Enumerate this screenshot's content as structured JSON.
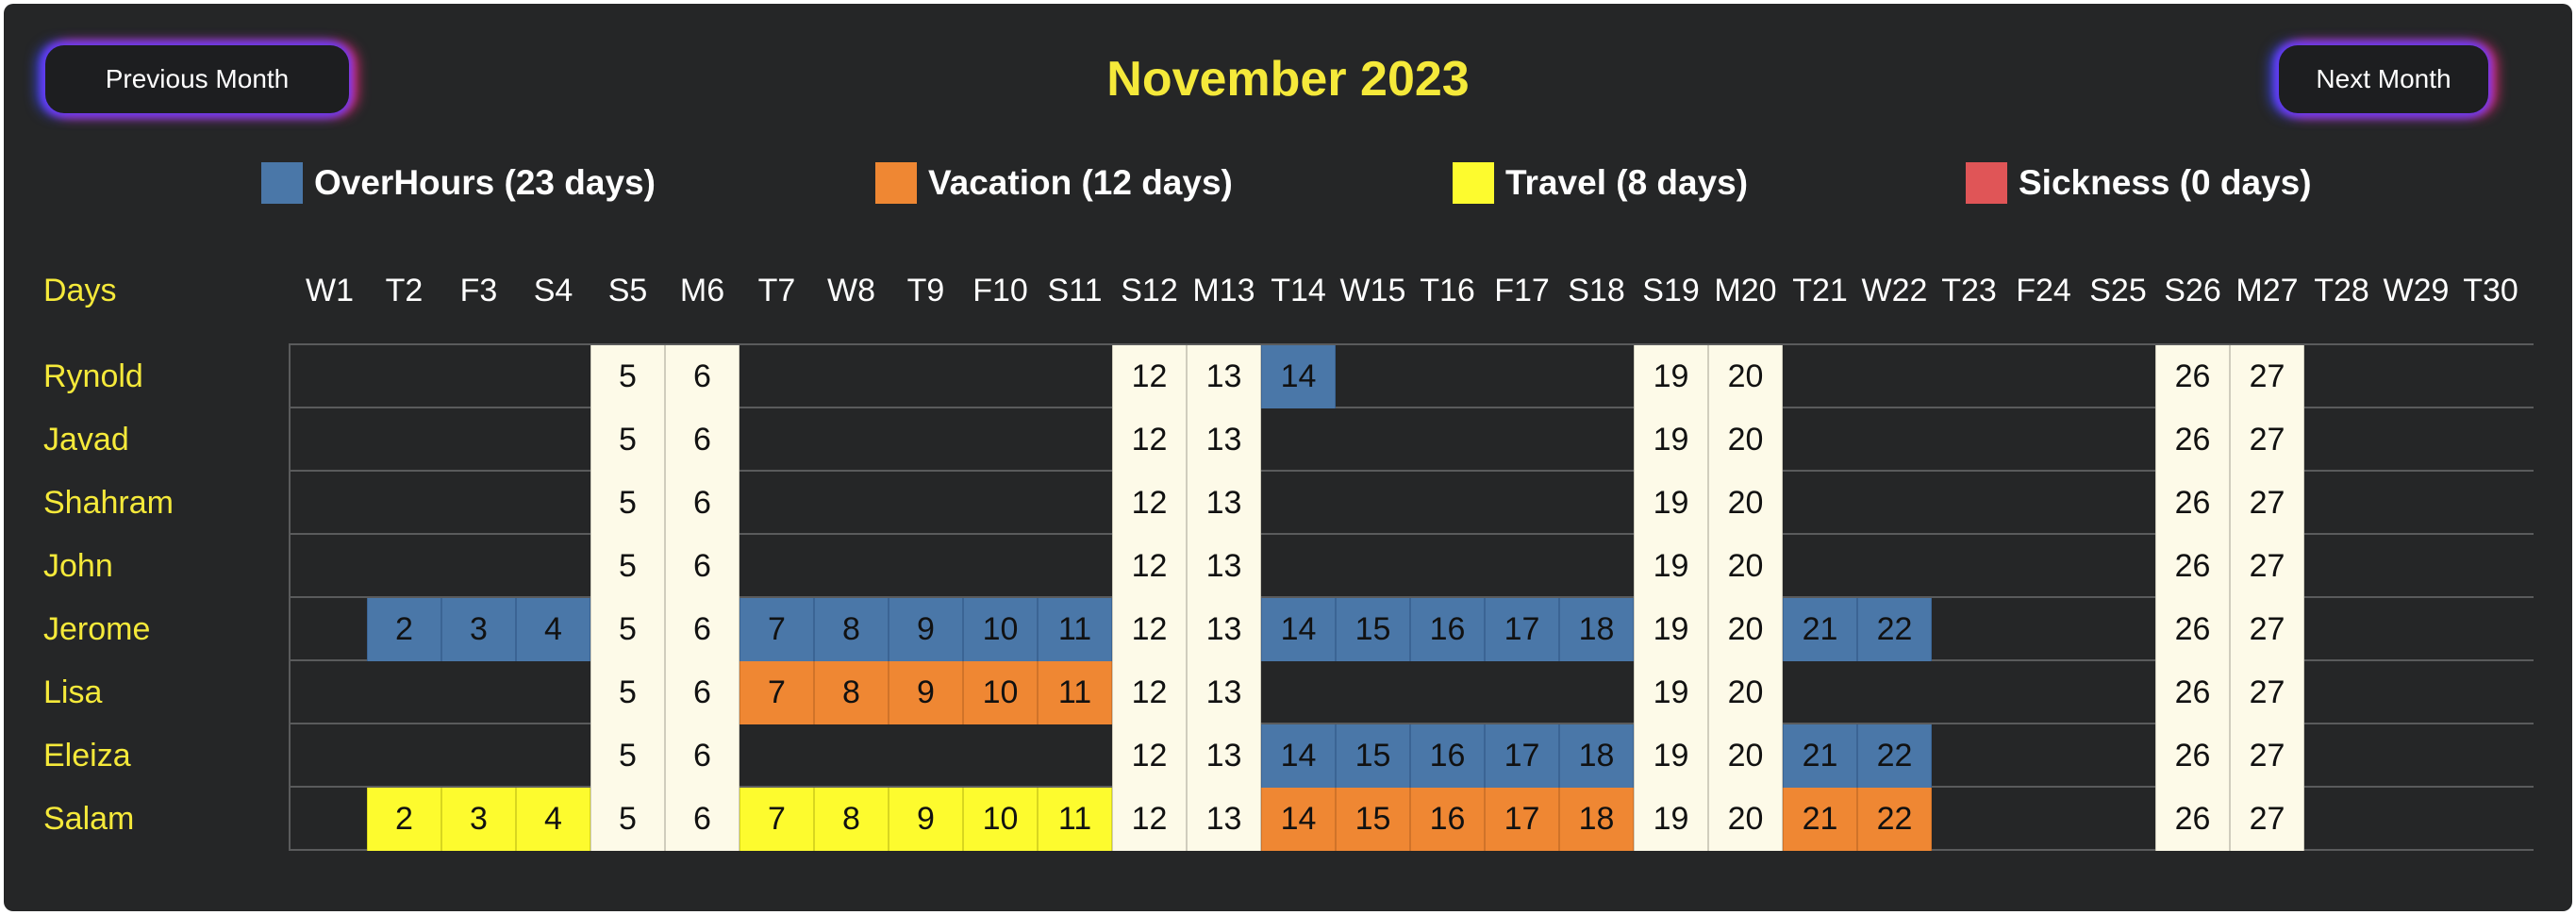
{
  "header": {
    "prev_label": "Previous Month",
    "next_label": "Next Month",
    "title": "November 2023"
  },
  "legend": [
    {
      "label": "OverHours (23 days)",
      "color": "#4a77a8"
    },
    {
      "label": "Vacation (12 days)",
      "color": "#ef8733"
    },
    {
      "label": "Travel (8 days)",
      "color": "#fdfb2e"
    },
    {
      "label": "Sickness (0 days)",
      "color": "#e05557"
    }
  ],
  "calendar": {
    "days_label": "Days",
    "days": [
      "W1",
      "T2",
      "F3",
      "S4",
      "S5",
      "M6",
      "T7",
      "W8",
      "T9",
      "F10",
      "S11",
      "S12",
      "M13",
      "T14",
      "W15",
      "T16",
      "F17",
      "S18",
      "S19",
      "M20",
      "T21",
      "W22",
      "T23",
      "F24",
      "S25",
      "S26",
      "M27",
      "T28",
      "W29",
      "T30"
    ],
    "weekend_days": [
      5,
      6,
      12,
      13,
      19,
      20,
      26,
      27
    ],
    "employees": [
      {
        "name": "Rynold",
        "entries": {
          "14": "overhours"
        }
      },
      {
        "name": "Javad",
        "entries": {}
      },
      {
        "name": "Shahram",
        "entries": {}
      },
      {
        "name": "John",
        "entries": {}
      },
      {
        "name": "Jerome",
        "entries": {
          "2": "overhours",
          "3": "overhours",
          "4": "overhours",
          "7": "overhours",
          "8": "overhours",
          "9": "overhours",
          "10": "overhours",
          "11": "overhours",
          "14": "overhours",
          "15": "overhours",
          "16": "overhours",
          "17": "overhours",
          "18": "overhours",
          "21": "overhours",
          "22": "overhours"
        }
      },
      {
        "name": "Lisa",
        "entries": {
          "7": "vacation",
          "8": "vacation",
          "9": "vacation",
          "10": "vacation",
          "11": "vacation"
        }
      },
      {
        "name": "Eleiza",
        "entries": {
          "14": "overhours",
          "15": "overhours",
          "16": "overhours",
          "17": "overhours",
          "18": "overhours",
          "21": "overhours",
          "22": "overhours"
        }
      },
      {
        "name": "Salam",
        "entries": {
          "2": "travel",
          "3": "travel",
          "4": "travel",
          "7": "travel",
          "8": "travel",
          "9": "travel",
          "10": "travel",
          "11": "travel",
          "14": "vacation",
          "15": "vacation",
          "16": "vacation",
          "17": "vacation",
          "18": "vacation",
          "21": "vacation",
          "22": "vacation"
        }
      }
    ]
  }
}
